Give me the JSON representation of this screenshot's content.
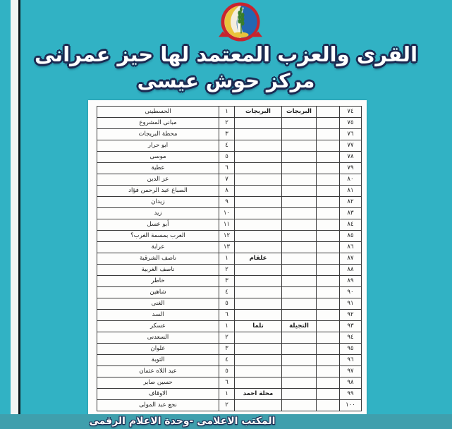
{
  "colors": {
    "background_teal": "#31b2c4",
    "banner_teal": "#3f9fad",
    "title_fill": "#ffffff",
    "title_outline": "#1b2a52",
    "logo_red": "#c9242e",
    "logo_blue": "#2267b3",
    "logo_yellow": "#e9c33c",
    "logo_green": "#387d2c"
  },
  "logo": {
    "name": "شعار المحافظة"
  },
  "title": {
    "line1": "القرى والعزب المعتمد لها حيز عمرانى",
    "line2": "مركز حوش عيسى"
  },
  "footer": {
    "text": "المكتب الاعلامى -وحدة الاعلام الرقمى"
  },
  "table": {
    "rows": [
      {
        "serial": "٧٤",
        "blank": "",
        "unit": "البريجات",
        "village": "البريجات",
        "num": "١",
        "name": "الحسطينى"
      },
      {
        "serial": "٧٥",
        "blank": "",
        "unit": "",
        "village": "",
        "num": "٢",
        "name": "مبانى المشروع"
      },
      {
        "serial": "٧٦",
        "blank": "",
        "unit": "",
        "village": "",
        "num": "٣",
        "name": "محطة البريجات"
      },
      {
        "serial": "٧٧",
        "blank": "",
        "unit": "",
        "village": "",
        "num": "٤",
        "name": "ابو حرار"
      },
      {
        "serial": "٧٨",
        "blank": "",
        "unit": "",
        "village": "",
        "num": "٥",
        "name": "موسى"
      },
      {
        "serial": "٧٩",
        "blank": "",
        "unit": "",
        "village": "",
        "num": "٦",
        "name": "عطية"
      },
      {
        "serial": "٨٠",
        "blank": "",
        "unit": "",
        "village": "",
        "num": "٧",
        "name": "عز الدين"
      },
      {
        "serial": "٨١",
        "blank": "",
        "unit": "",
        "village": "",
        "num": "٨",
        "name": "الصباغ عبد الرحمن فؤاد"
      },
      {
        "serial": "٨٢",
        "blank": "",
        "unit": "",
        "village": "",
        "num": "٩",
        "name": "زيدان"
      },
      {
        "serial": "٨٣",
        "blank": "",
        "unit": "",
        "village": "",
        "num": "١٠",
        "name": "زيد"
      },
      {
        "serial": "٨٤",
        "blank": "",
        "unit": "",
        "village": "",
        "num": "١١",
        "name": "أبو عسل"
      },
      {
        "serial": "٨٥",
        "blank": "",
        "unit": "",
        "village": "",
        "num": "١٢",
        "name": "العرب بمسمة الغرب؟"
      },
      {
        "serial": "٨٦",
        "blank": "",
        "unit": "",
        "village": "",
        "num": "١٣",
        "name": "عرابة"
      },
      {
        "serial": "٨٧",
        "blank": "",
        "unit": "",
        "village": "علقام",
        "num": "١",
        "name": "ناصف الشرقية"
      },
      {
        "serial": "٨٨",
        "blank": "",
        "unit": "",
        "village": "",
        "num": "٢",
        "name": "ناصف الغربية"
      },
      {
        "serial": "٨٩",
        "blank": "",
        "unit": "",
        "village": "",
        "num": "٣",
        "name": "خاطر"
      },
      {
        "serial": "٩٠",
        "blank": "",
        "unit": "",
        "village": "",
        "num": "٤",
        "name": "شاهين"
      },
      {
        "serial": "٩١",
        "blank": "",
        "unit": "",
        "village": "",
        "num": "٥",
        "name": "الغنى"
      },
      {
        "serial": "٩٢",
        "blank": "",
        "unit": "",
        "village": "",
        "num": "٦",
        "name": "السد"
      },
      {
        "serial": "٩٣",
        "blank": "",
        "unit": "التجيلة",
        "village": "تلما",
        "num": "١",
        "name": "عسكر"
      },
      {
        "serial": "٩٤",
        "blank": "",
        "unit": "",
        "village": "",
        "num": "٢",
        "name": "السعدنى"
      },
      {
        "serial": "٩٥",
        "blank": "",
        "unit": "",
        "village": "",
        "num": "٣",
        "name": "علوان"
      },
      {
        "serial": "٩٦",
        "blank": "",
        "unit": "",
        "village": "",
        "num": "٤",
        "name": "الثوبة"
      },
      {
        "serial": "٩٧",
        "blank": "",
        "unit": "",
        "village": "",
        "num": "٥",
        "name": "عبد اللاه عثمان"
      },
      {
        "serial": "٩٨",
        "blank": "",
        "unit": "",
        "village": "",
        "num": "٦",
        "name": "حسين صابر"
      },
      {
        "serial": "٩٩",
        "blank": "",
        "unit": "",
        "village": "محلة احمد",
        "num": "١",
        "name": "الاوقاف"
      },
      {
        "serial": "١٠٠",
        "blank": "",
        "unit": "",
        "village": "",
        "num": "٢",
        "name": "نجع عبد المولى"
      }
    ]
  }
}
